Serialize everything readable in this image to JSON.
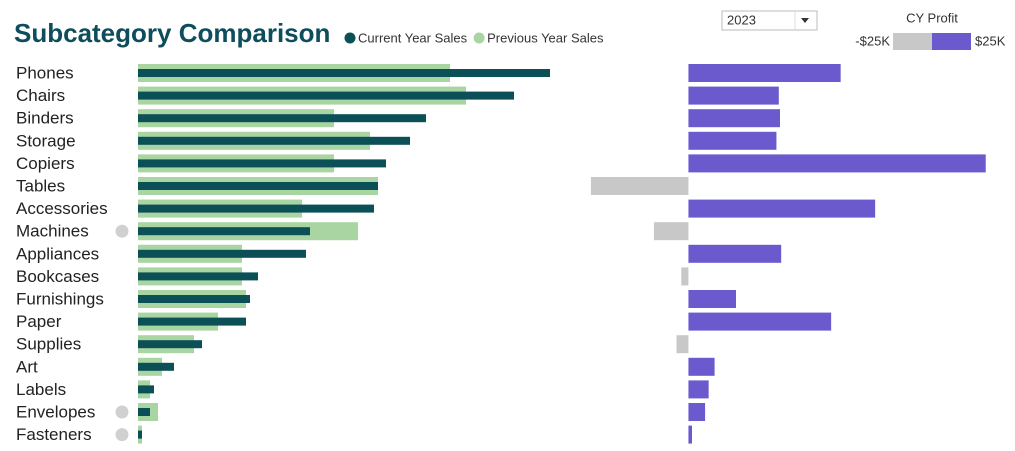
{
  "chart_data": {
    "type": "bar",
    "orientation": "horizontal",
    "title": "Subcategory Comparison",
    "year_selector": "2023",
    "categories": [
      "Phones",
      "Chairs",
      "Binders",
      "Storage",
      "Copiers",
      "Tables",
      "Accessories",
      "Machines",
      "Appliances",
      "Bookcases",
      "Furnishings",
      "Paper",
      "Supplies",
      "Art",
      "Labels",
      "Envelopes",
      "Fasteners"
    ],
    "flagged": [
      false,
      false,
      false,
      false,
      false,
      false,
      false,
      true,
      false,
      false,
      false,
      false,
      false,
      false,
      false,
      true,
      true
    ],
    "flag_color": "#d0d0d0",
    "xlim": [
      0,
      110
    ],
    "series": [
      {
        "name": "Current Year Sales",
        "color": "#0b4f57",
        "values": [
          103,
          94,
          72,
          68,
          62,
          60,
          59,
          43,
          42,
          30,
          28,
          27,
          16,
          9,
          4,
          3,
          1
        ]
      },
      {
        "name": "Previous Year Sales",
        "color": "#a8d5a2",
        "values": [
          78,
          82,
          49,
          58,
          49,
          60,
          41,
          55,
          26,
          26,
          27,
          20,
          14,
          6,
          3,
          5,
          1
        ]
      }
    ],
    "profit": {
      "name": "CY Profit",
      "values": [
        12.8,
        7.6,
        7.7,
        7.4,
        25,
        -8.2,
        15.7,
        -2.9,
        7.8,
        -0.6,
        4.0,
        12.0,
        -1.0,
        2.2,
        1.7,
        1.4,
        0.3
      ],
      "xlim": [
        -10.8,
        26.2
      ],
      "positive_color": "#6a5acd",
      "negative_color": "#c8c8c8",
      "legend_labels": [
        "-$25K",
        "$25K"
      ]
    }
  }
}
